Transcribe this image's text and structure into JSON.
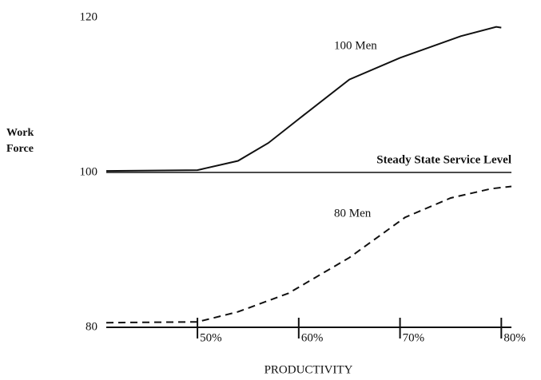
{
  "chart_data": {
    "type": "line",
    "xlabel": "PRODUCTIVITY",
    "ylabel": [
      "Work",
      "Force"
    ],
    "xlim": [
      41,
      81
    ],
    "ylim": [
      80,
      120
    ],
    "xticks": [
      {
        "value": 50,
        "label": "50%"
      },
      {
        "value": 60,
        "label": "60%"
      },
      {
        "value": 70,
        "label": "70%"
      },
      {
        "value": 80,
        "label": "80%"
      }
    ],
    "yticks": [
      80,
      100,
      120
    ],
    "reference_lines": [
      {
        "value": 100,
        "label": "Steady State Service Level"
      }
    ],
    "series": [
      {
        "name": "100 Men",
        "color": "#111111",
        "style": "solid",
        "x": [
          41,
          50,
          54,
          57,
          60,
          65,
          70,
          76,
          79.5,
          80
        ],
        "values": [
          100.2,
          100.3,
          101.5,
          103.8,
          106.9,
          112,
          114.8,
          117.6,
          118.8,
          118.7
        ]
      },
      {
        "name": "80 Men",
        "color": "#111111",
        "style": "dashed",
        "x": [
          41,
          50,
          54,
          59,
          65,
          70.5,
          75,
          79,
          81
        ],
        "values": [
          80.6,
          80.7,
          82,
          84.4,
          89,
          94.2,
          96.7,
          97.9,
          98.2
        ]
      }
    ]
  }
}
